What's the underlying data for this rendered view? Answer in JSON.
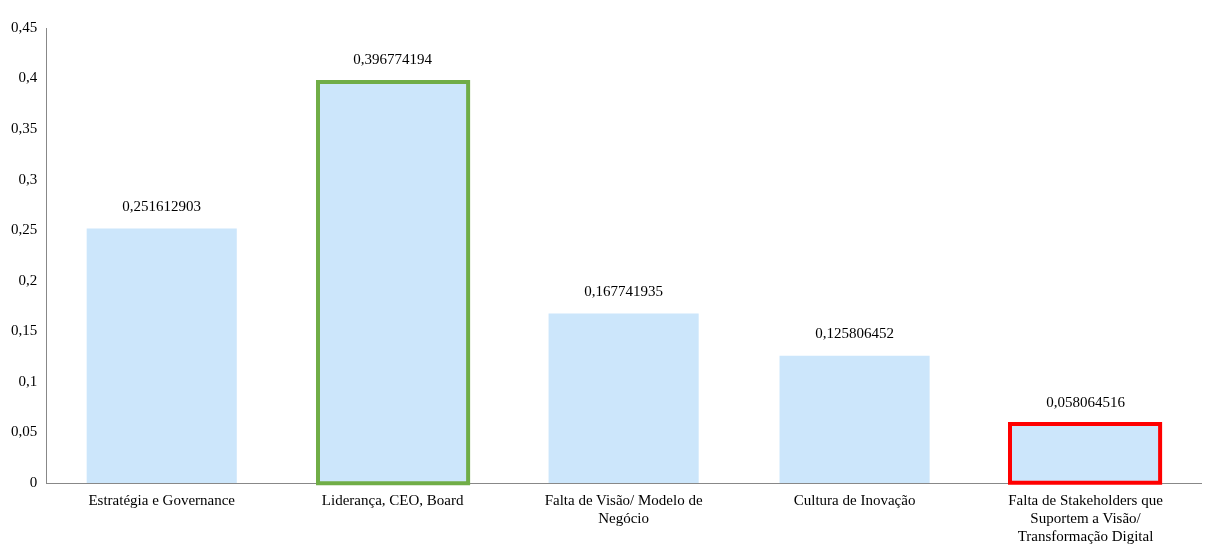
{
  "chart_data": {
    "type": "bar",
    "categories": [
      "Estratégia e Governance",
      "Liderança, CEO, Board",
      "Falta de Visão/ Modelo de Negócio",
      "Cultura de Inovação",
      "Falta de Stakeholders que Suportem a Visão/ Transformação Digital"
    ],
    "values": [
      0.251612903,
      0.396774194,
      0.167741935,
      0.125806452,
      0.058064516
    ],
    "value_labels": [
      "0,251612903",
      "0,396774194",
      "0,167741935",
      "0,125806452",
      "0,058064516"
    ],
    "colors": [
      "#cce6fb",
      "#cce6fb",
      "#cce6fb",
      "#cce6fb",
      "#cce6fb"
    ],
    "ylim": [
      0,
      0.45
    ],
    "yticks": [
      {
        "value": 0,
        "label": "0"
      },
      {
        "value": 0.05,
        "label": "0,05"
      },
      {
        "value": 0.1,
        "label": "0,1"
      },
      {
        "value": 0.15,
        "label": "0,15"
      },
      {
        "value": 0.2,
        "label": "0,2"
      },
      {
        "value": 0.25,
        "label": "0,25"
      },
      {
        "value": 0.3,
        "label": "0,3"
      },
      {
        "value": 0.35,
        "label": "0,35"
      },
      {
        "value": 0.4,
        "label": "0,4"
      },
      {
        "value": 0.45,
        "label": "0,45"
      }
    ],
    "grid": false,
    "legend": false
  }
}
